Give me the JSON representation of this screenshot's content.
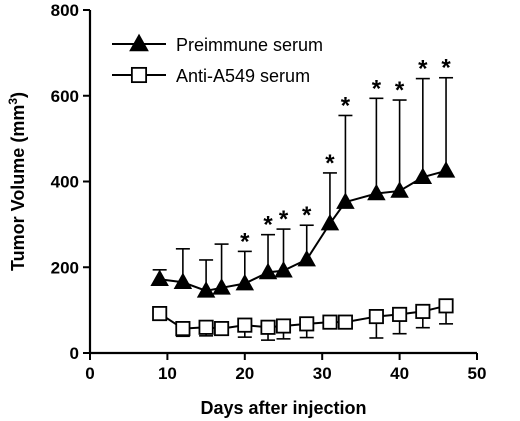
{
  "chart_data": {
    "type": "line",
    "xlabel": "Days after injection",
    "ylabel_main": "Tumor Volume (mm",
    "ylabel_sup": "3",
    "ylabel_tail": ")",
    "xlim": [
      0,
      50
    ],
    "ylim": [
      0,
      800
    ],
    "xticks": [
      "0",
      "10",
      "20",
      "30",
      "40",
      "50"
    ],
    "yticks": [
      "0",
      "200",
      "400",
      "600",
      "800"
    ],
    "grid": false,
    "legend_position": "top-left",
    "significance_marker": "*",
    "series": [
      {
        "name": "Preimmune serum",
        "marker": "filled-triangle",
        "x": [
          9,
          12,
          15,
          17,
          20,
          23,
          25,
          28,
          31,
          33,
          37,
          40,
          43,
          46
        ],
        "y": [
          172,
          165,
          145,
          152,
          162,
          188,
          192,
          218,
          302,
          352,
          372,
          378,
          410,
          425
        ],
        "err": [
          22,
          78,
          72,
          102,
          75,
          88,
          97,
          80,
          118,
          202,
          222,
          212,
          230,
          217
        ],
        "significant": [
          false,
          false,
          false,
          false,
          true,
          true,
          true,
          true,
          true,
          true,
          true,
          true,
          true,
          true
        ]
      },
      {
        "name": "Anti-A549 serum",
        "marker": "open-square",
        "x": [
          9,
          12,
          15,
          17,
          20,
          23,
          25,
          28,
          31,
          33,
          37,
          40,
          43,
          46
        ],
        "y": [
          92,
          57,
          60,
          57,
          65,
          60,
          63,
          68,
          72,
          72,
          85,
          90,
          97,
          110
        ],
        "err": [
          12,
          18,
          20,
          15,
          28,
          30,
          30,
          32,
          10,
          12,
          50,
          45,
          38,
          42
        ],
        "significant": [
          false,
          false,
          false,
          false,
          false,
          false,
          false,
          false,
          false,
          false,
          false,
          false,
          false,
          false
        ]
      }
    ]
  }
}
